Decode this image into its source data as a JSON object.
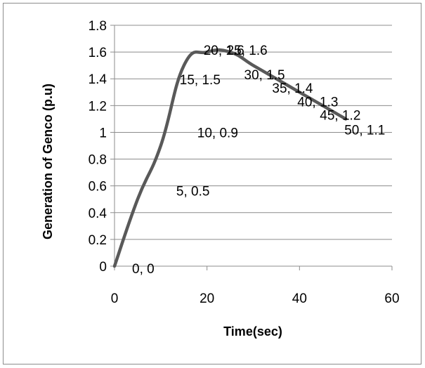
{
  "chart_data": {
    "type": "line",
    "xlabel": "Time(sec)",
    "ylabel": "Generation of Genco (p.u)",
    "xlim": [
      0,
      60
    ],
    "ylim": [
      0,
      1.8
    ],
    "xticks": [
      "0",
      "20",
      "40",
      "60"
    ],
    "yticks": [
      "0",
      "0.2",
      "0.4",
      "0.6",
      "0.8",
      "1",
      "1.2",
      "1.4",
      "1.6",
      "1.8"
    ],
    "grid": "horizontal",
    "legend": "none",
    "line_color": "#595959",
    "series": [
      {
        "x": [
          0,
          5,
          10,
          15,
          20,
          25,
          30,
          35,
          40,
          45,
          50
        ],
        "y": [
          0,
          0.5,
          0.9,
          1.5,
          1.6,
          1.6,
          1.5,
          1.4,
          1.3,
          1.2,
          1.1
        ],
        "labels": [
          "0, 0",
          "5, 0.5",
          "10, 0.9",
          "15, 1.5",
          "20, 1.6",
          "25, 1.6",
          "30, 1.5",
          "35, 1.4",
          "40, 1.3",
          "45, 1.2",
          "50, 1.1"
        ]
      }
    ]
  }
}
